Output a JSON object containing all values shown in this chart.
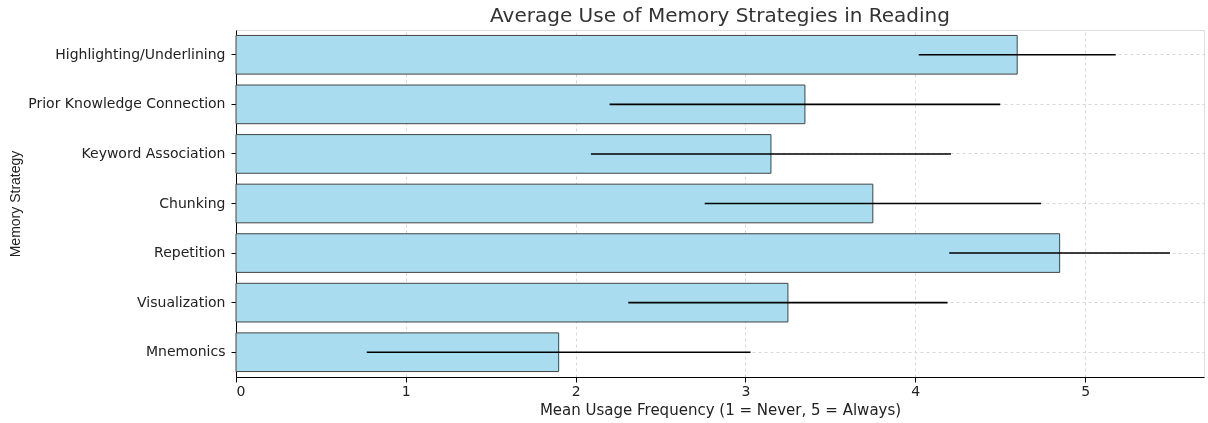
{
  "chart_data": {
    "type": "bar",
    "orientation": "horizontal",
    "title": "Average Use of Memory Strategies in Reading",
    "xlabel": "Mean Usage Frequency (1 = Never, 5 = Always)",
    "ylabel": "Memory Strategy",
    "categories": [
      "Highlighting/Underlining",
      "Prior Knowledge Connection",
      "Keyword Association",
      "Chunking",
      "Repetition",
      "Visualization",
      "Mnemonics"
    ],
    "values": [
      4.6,
      3.35,
      3.15,
      3.75,
      4.85,
      3.25,
      1.9
    ],
    "errors": [
      0.58,
      1.15,
      1.06,
      0.99,
      0.65,
      0.94,
      1.13
    ],
    "color": "#a8dcee",
    "xlim": [
      0,
      5.7
    ],
    "xticks": [
      0,
      1,
      2,
      3,
      4,
      5
    ],
    "grid": true
  }
}
